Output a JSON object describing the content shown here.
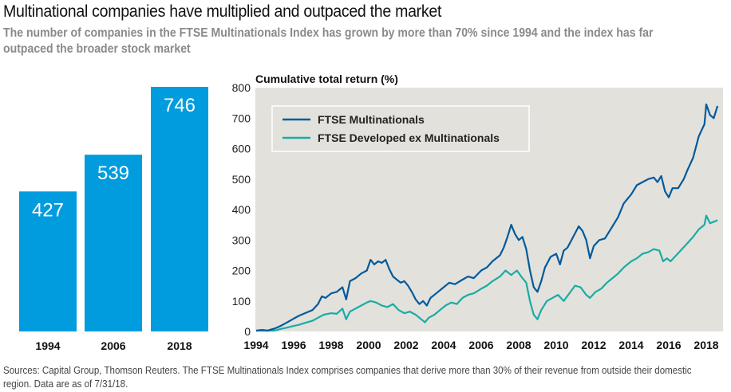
{
  "header": {
    "title": "Multinational companies have multiplied and outpaced the market",
    "subtitle": "The number of companies in the FTSE Multinationals Index has grown by more than 70% since 1994 and the index has far outpaced the broader stock market"
  },
  "footnote": "Sources: Capital Group, Thomson Reuters. The FTSE Multinationals Index comprises companies that derive more than 30% of their revenue from outside their domestic region. Data are as of 7/31/18.",
  "colors": {
    "bar": "#009cde",
    "multinationals": "#005a9c",
    "developed_ex": "#17ada5",
    "plot_bg": "#e3e1dc"
  },
  "chart_data": [
    {
      "type": "bar",
      "title": "Number of companies in the FTSE Multinationals Index",
      "categories": [
        "1994",
        "2006",
        "2018"
      ],
      "values": [
        427,
        539,
        746
      ],
      "value_labels": [
        "427",
        "539",
        "746"
      ],
      "xlabel": "",
      "ylabel": "",
      "ylim": [
        0,
        746
      ]
    },
    {
      "type": "line",
      "title": "",
      "ylabel": "Cumulative total return (%)",
      "xlabel": "",
      "ylim": [
        0,
        800
      ],
      "xlim": [
        1994,
        2018.7
      ],
      "yticks": [
        "0",
        "100",
        "200",
        "300",
        "400",
        "500",
        "600",
        "700",
        "800"
      ],
      "xticks": [
        "1994",
        "1996",
        "1998",
        "2000",
        "2002",
        "2004",
        "2006",
        "2008",
        "2010",
        "2012",
        "2014",
        "2016",
        "2018"
      ],
      "grid": false,
      "legend_position": "top-left",
      "series": [
        {
          "name": "FTSE Multinationals",
          "x": [
            1994.0,
            1994.3,
            1994.6,
            1995.0,
            1995.3,
            1995.6,
            1996.0,
            1996.3,
            1996.6,
            1997.0,
            1997.3,
            1997.5,
            1997.7,
            1998.0,
            1998.3,
            1998.6,
            1998.8,
            1999.0,
            1999.3,
            1999.6,
            1999.9,
            2000.1,
            2000.3,
            2000.5,
            2000.7,
            2000.9,
            2001.1,
            2001.3,
            2001.5,
            2001.7,
            2001.9,
            2002.1,
            2002.3,
            2002.5,
            2002.7,
            2002.9,
            2003.1,
            2003.3,
            2003.6,
            2004.0,
            2004.3,
            2004.6,
            2005.0,
            2005.3,
            2005.6,
            2006.0,
            2006.3,
            2006.6,
            2007.0,
            2007.2,
            2007.4,
            2007.6,
            2007.8,
            2008.0,
            2008.2,
            2008.4,
            2008.6,
            2008.8,
            2009.0,
            2009.2,
            2009.4,
            2009.7,
            2010.0,
            2010.2,
            2010.4,
            2010.6,
            2010.9,
            2011.2,
            2011.4,
            2011.6,
            2011.8,
            2012.0,
            2012.3,
            2012.6,
            2013.0,
            2013.3,
            2013.6,
            2014.0,
            2014.3,
            2014.6,
            2014.9,
            2015.2,
            2015.4,
            2015.6,
            2015.8,
            2016.0,
            2016.2,
            2016.5,
            2016.8,
            2017.0,
            2017.3,
            2017.6,
            2017.9,
            2018.0,
            2018.2,
            2018.4,
            2018.6
          ],
          "y": [
            0,
            5,
            3,
            10,
            18,
            28,
            42,
            52,
            60,
            70,
            90,
            115,
            110,
            125,
            130,
            145,
            105,
            165,
            175,
            190,
            200,
            235,
            220,
            230,
            225,
            235,
            205,
            180,
            170,
            160,
            165,
            150,
            130,
            105,
            90,
            100,
            85,
            110,
            125,
            145,
            160,
            155,
            170,
            180,
            175,
            200,
            210,
            230,
            250,
            275,
            310,
            350,
            320,
            300,
            310,
            270,
            200,
            145,
            130,
            165,
            210,
            245,
            255,
            220,
            265,
            275,
            310,
            345,
            330,
            300,
            240,
            280,
            300,
            305,
            345,
            375,
            420,
            450,
            480,
            490,
            500,
            505,
            490,
            510,
            460,
            440,
            470,
            470,
            500,
            530,
            570,
            640,
            680,
            745,
            710,
            700,
            740
          ]
        },
        {
          "name": "FTSE Developed ex Multinationals",
          "x": [
            1994.0,
            1994.4,
            1994.8,
            1995.0,
            1995.3,
            1995.6,
            1996.0,
            1996.3,
            1996.6,
            1997.0,
            1997.3,
            1997.6,
            1998.0,
            1998.3,
            1998.6,
            1998.8,
            1999.0,
            1999.3,
            1999.6,
            1999.9,
            2000.1,
            2000.4,
            2000.7,
            2001.0,
            2001.3,
            2001.6,
            2001.9,
            2002.2,
            2002.5,
            2002.8,
            2003.0,
            2003.2,
            2003.5,
            2003.8,
            2004.1,
            2004.4,
            2004.7,
            2005.0,
            2005.3,
            2005.6,
            2006.0,
            2006.3,
            2006.6,
            2007.0,
            2007.3,
            2007.6,
            2007.9,
            2008.2,
            2008.4,
            2008.6,
            2008.8,
            2009.0,
            2009.2,
            2009.5,
            2009.8,
            2010.1,
            2010.4,
            2010.7,
            2011.0,
            2011.3,
            2011.6,
            2011.8,
            2012.1,
            2012.4,
            2012.7,
            2013.0,
            2013.3,
            2013.6,
            2014.0,
            2014.3,
            2014.6,
            2014.9,
            2015.2,
            2015.5,
            2015.7,
            2015.9,
            2016.1,
            2016.4,
            2016.7,
            2017.0,
            2017.3,
            2017.6,
            2017.9,
            2018.0,
            2018.2,
            2018.4,
            2018.6
          ],
          "y": [
            0,
            0,
            -2,
            3,
            8,
            12,
            18,
            22,
            28,
            35,
            45,
            55,
            60,
            58,
            75,
            40,
            65,
            75,
            85,
            95,
            100,
            95,
            85,
            80,
            90,
            70,
            60,
            65,
            55,
            40,
            30,
            45,
            55,
            70,
            85,
            95,
            90,
            110,
            120,
            125,
            140,
            150,
            165,
            180,
            200,
            185,
            200,
            175,
            160,
            100,
            55,
            40,
            70,
            100,
            110,
            120,
            100,
            125,
            150,
            145,
            120,
            110,
            130,
            140,
            160,
            175,
            190,
            210,
            230,
            240,
            255,
            260,
            270,
            265,
            230,
            240,
            230,
            250,
            270,
            290,
            310,
            335,
            350,
            380,
            355,
            360,
            365
          ]
        }
      ]
    }
  ]
}
